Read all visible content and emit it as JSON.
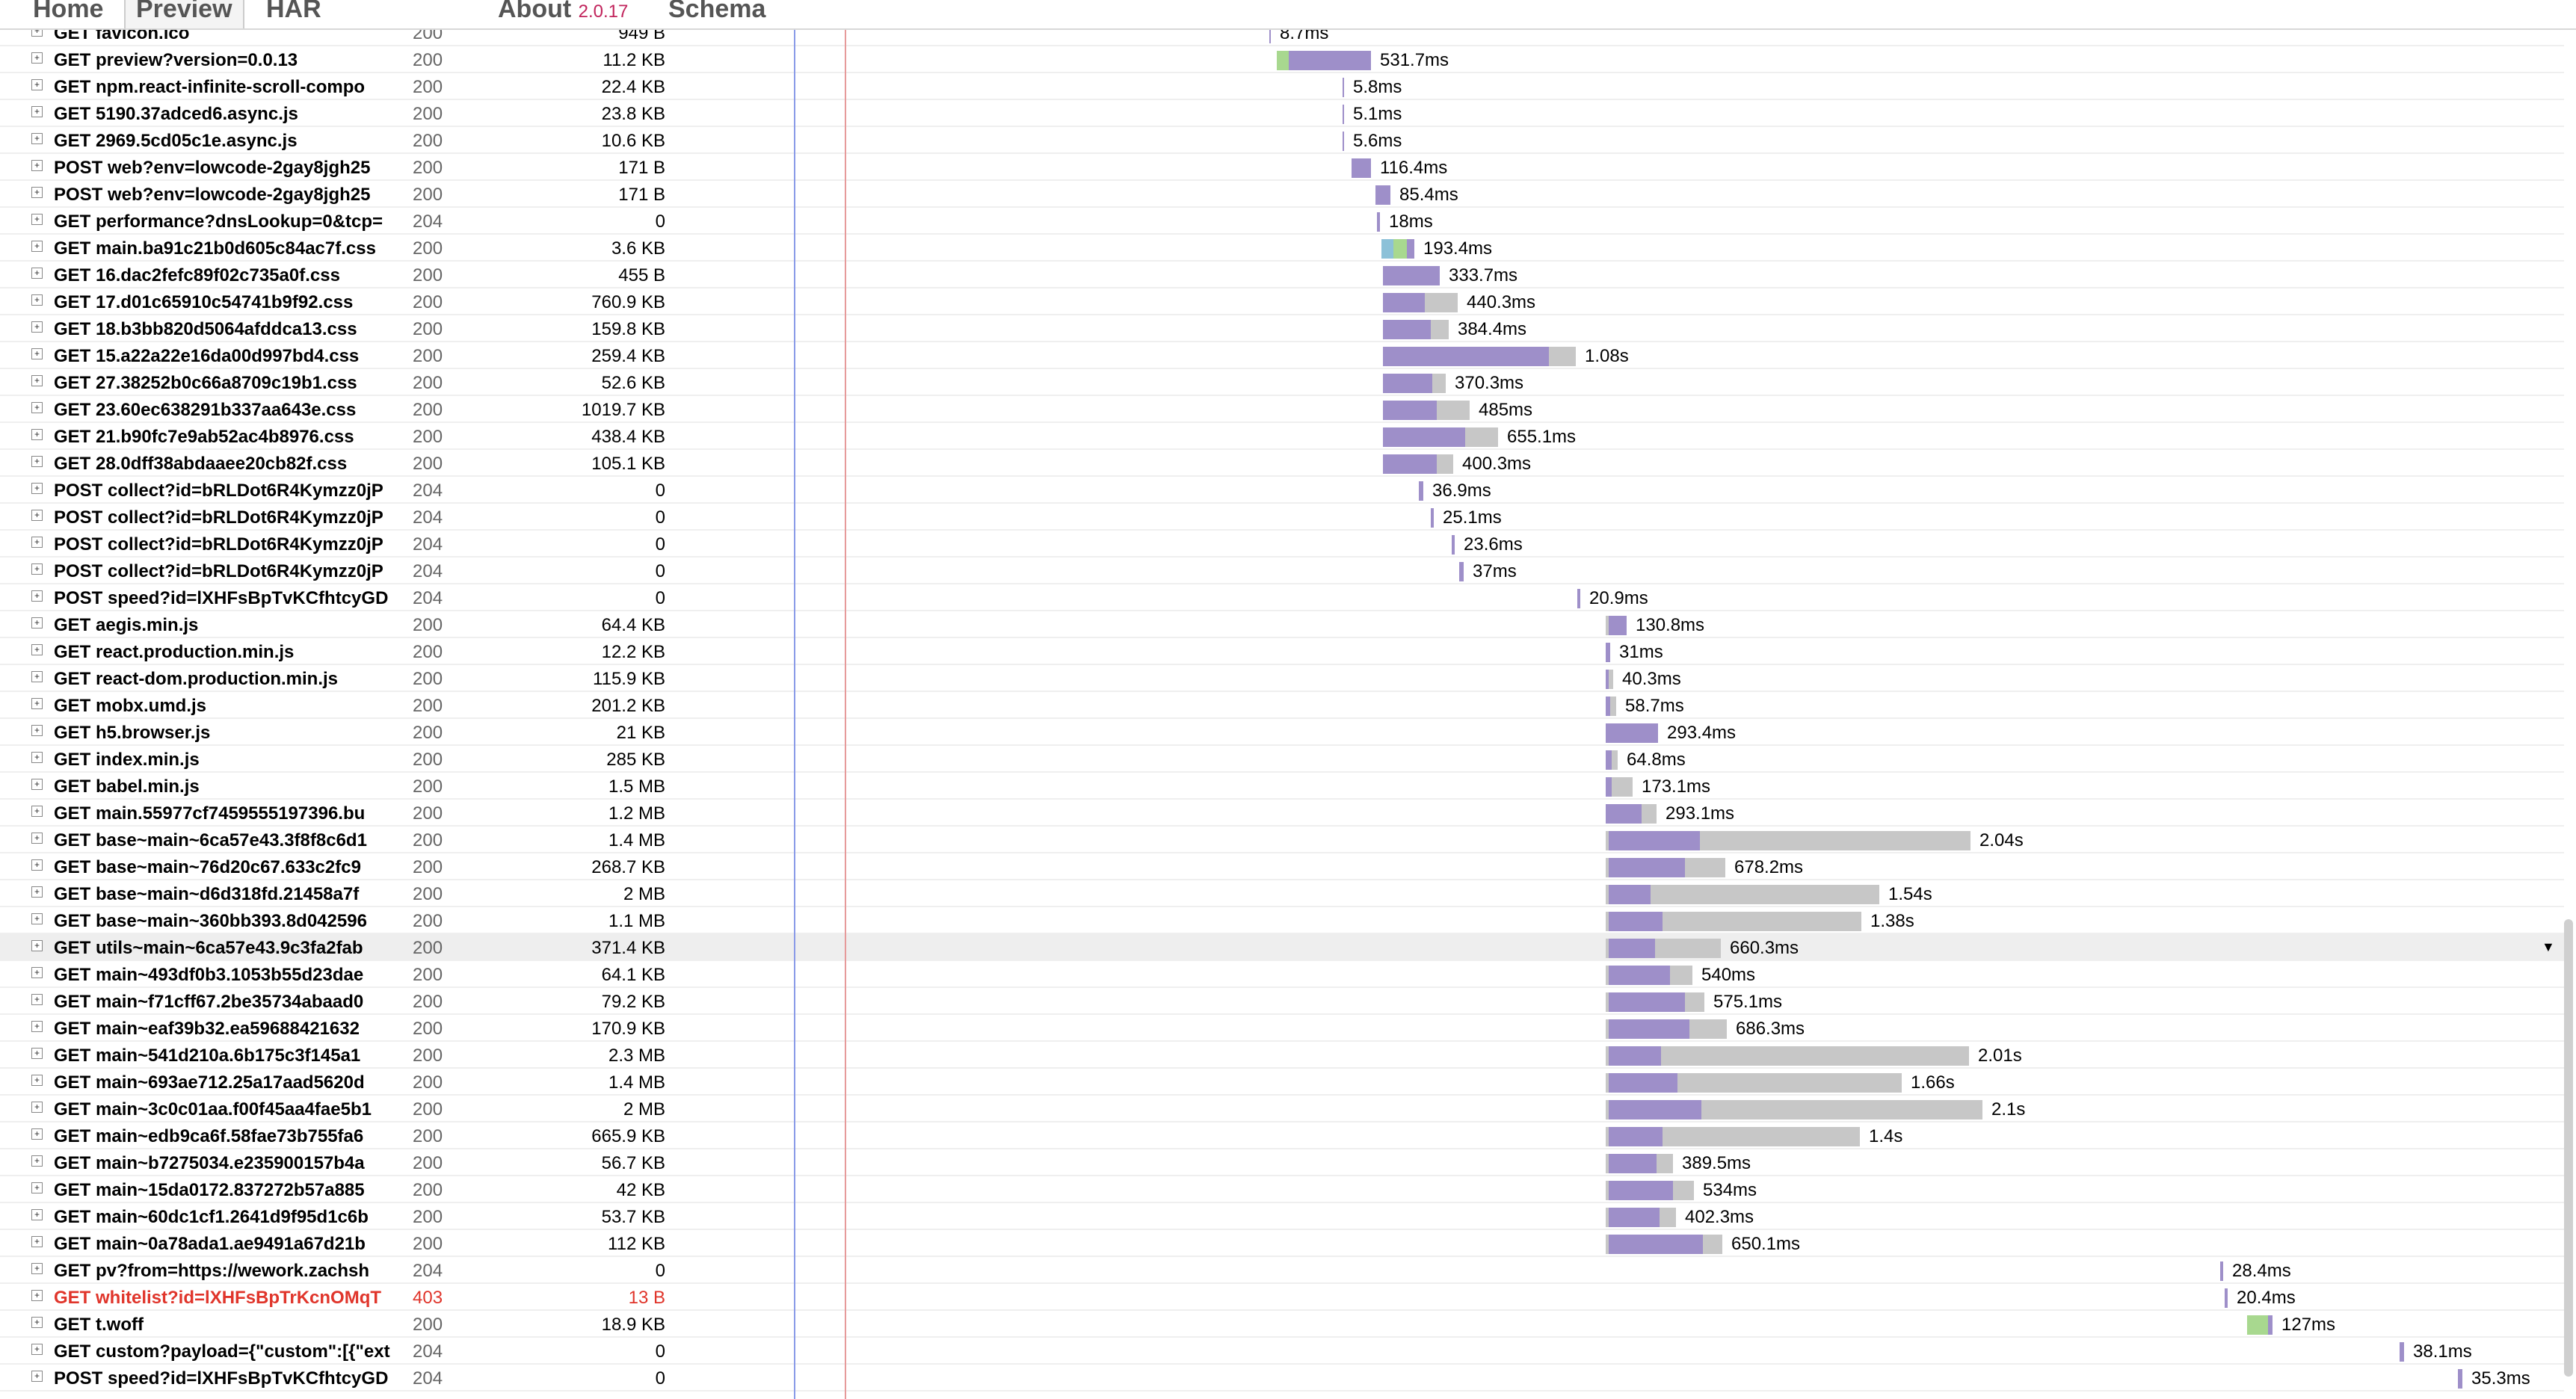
{
  "tabs": {
    "home": "Home",
    "preview": "Preview",
    "har": "HAR",
    "about": "About",
    "version": "2.0.17",
    "schema": "Schema"
  },
  "requests": [
    {
      "url": "GET favicon.ico",
      "status": "200",
      "size": "949 B",
      "time": "8.7ms",
      "start": 1698,
      "segs": [
        [
          2,
          "wait"
        ]
      ]
    },
    {
      "url": "GET preview?version=0.0.13",
      "status": "200",
      "size": "11.2 KB",
      "time": "531.7ms",
      "start": 1708,
      "segs": [
        [
          16,
          "block"
        ],
        [
          110,
          "wait"
        ]
      ]
    },
    {
      "url": "GET npm.react-infinite-scroll-compo",
      "status": "200",
      "size": "22.4 KB",
      "time": "5.8ms",
      "start": 1796,
      "segs": [
        [
          2,
          "wait"
        ]
      ]
    },
    {
      "url": "GET 5190.37adced6.async.js",
      "status": "200",
      "size": "23.8 KB",
      "time": "5.1ms",
      "start": 1796,
      "segs": [
        [
          2,
          "wait"
        ]
      ]
    },
    {
      "url": "GET 2969.5cd05c1e.async.js",
      "status": "200",
      "size": "10.6 KB",
      "time": "5.6ms",
      "start": 1796,
      "segs": [
        [
          2,
          "wait"
        ]
      ]
    },
    {
      "url": "POST web?env=lowcode-2gay8jgh25",
      "status": "200",
      "size": "171 B",
      "time": "116.4ms",
      "start": 1808,
      "segs": [
        [
          26,
          "wait"
        ]
      ]
    },
    {
      "url": "POST web?env=lowcode-2gay8jgh25",
      "status": "200",
      "size": "171 B",
      "time": "85.4ms",
      "start": 1840,
      "segs": [
        [
          20,
          "wait"
        ]
      ]
    },
    {
      "url": "GET performance?dnsLookup=0&tcp=",
      "status": "204",
      "size": "0",
      "time": "18ms",
      "start": 1842,
      "segs": [
        [
          4,
          "wait"
        ]
      ]
    },
    {
      "url": "GET main.ba91c21b0d605c84ac7f.css",
      "status": "200",
      "size": "3.6 KB",
      "time": "193.4ms",
      "start": 1848,
      "segs": [
        [
          16,
          "dns"
        ],
        [
          18,
          "block"
        ],
        [
          10,
          "wait"
        ]
      ]
    },
    {
      "url": "GET 16.dac2fefc89f02c735a0f.css",
      "status": "200",
      "size": "455 B",
      "time": "333.7ms",
      "start": 1850,
      "segs": [
        [
          76,
          "wait"
        ]
      ]
    },
    {
      "url": "GET 17.d01c65910c54741b9f92.css",
      "status": "200",
      "size": "760.9 KB",
      "time": "440.3ms",
      "start": 1850,
      "segs": [
        [
          56,
          "wait"
        ],
        [
          44,
          "recv"
        ]
      ]
    },
    {
      "url": "GET 18.b3bb820d5064afddca13.css",
      "status": "200",
      "size": "159.8 KB",
      "time": "384.4ms",
      "start": 1850,
      "segs": [
        [
          64,
          "wait"
        ],
        [
          24,
          "recv"
        ]
      ]
    },
    {
      "url": "GET 15.a22a22e16da00d997bd4.css",
      "status": "200",
      "size": "259.4 KB",
      "time": "1.08s",
      "start": 1850,
      "segs": [
        [
          222,
          "wait"
        ],
        [
          36,
          "recv"
        ]
      ]
    },
    {
      "url": "GET 27.38252b0c66a8709c19b1.css",
      "status": "200",
      "size": "52.6 KB",
      "time": "370.3ms",
      "start": 1850,
      "segs": [
        [
          66,
          "wait"
        ],
        [
          18,
          "recv"
        ]
      ]
    },
    {
      "url": "GET 23.60ec638291b337aa643e.css",
      "status": "200",
      "size": "1019.7 KB",
      "time": "485ms",
      "start": 1850,
      "segs": [
        [
          72,
          "wait"
        ],
        [
          44,
          "recv"
        ]
      ]
    },
    {
      "url": "GET 21.b90fc7e9ab52ac4b8976.css",
      "status": "200",
      "size": "438.4 KB",
      "time": "655.1ms",
      "start": 1850,
      "segs": [
        [
          110,
          "wait"
        ],
        [
          44,
          "recv"
        ]
      ]
    },
    {
      "url": "GET 28.0dff38abdaaee20cb82f.css",
      "status": "200",
      "size": "105.1 KB",
      "time": "400.3ms",
      "start": 1850,
      "segs": [
        [
          72,
          "wait"
        ],
        [
          22,
          "recv"
        ]
      ]
    },
    {
      "url": "POST collect?id=bRLDot6R4Kymzz0jP",
      "status": "204",
      "size": "0",
      "time": "36.9ms",
      "start": 1898,
      "segs": [
        [
          6,
          "wait"
        ]
      ]
    },
    {
      "url": "POST collect?id=bRLDot6R4Kymzz0jP",
      "status": "204",
      "size": "0",
      "time": "25.1ms",
      "start": 1914,
      "segs": [
        [
          4,
          "wait"
        ]
      ]
    },
    {
      "url": "POST collect?id=bRLDot6R4Kymzz0jP",
      "status": "204",
      "size": "0",
      "time": "23.6ms",
      "start": 1942,
      "segs": [
        [
          4,
          "wait"
        ]
      ]
    },
    {
      "url": "POST collect?id=bRLDot6R4Kymzz0jP",
      "status": "204",
      "size": "0",
      "time": "37ms",
      "start": 1952,
      "segs": [
        [
          6,
          "wait"
        ]
      ]
    },
    {
      "url": "POST speed?id=lXHFsBpTvKCfhtcyGD",
      "status": "204",
      "size": "0",
      "time": "20.9ms",
      "start": 2110,
      "segs": [
        [
          4,
          "wait"
        ]
      ]
    },
    {
      "url": "GET aegis.min.js",
      "status": "200",
      "size": "64.4 KB",
      "time": "130.8ms",
      "start": 2148,
      "segs": [
        [
          4,
          "recv"
        ],
        [
          24,
          "wait"
        ]
      ]
    },
    {
      "url": "GET react.production.min.js",
      "status": "200",
      "size": "12.2 KB",
      "time": "31ms",
      "start": 2148,
      "segs": [
        [
          6,
          "wait"
        ]
      ]
    },
    {
      "url": "GET react-dom.production.min.js",
      "status": "200",
      "size": "115.9 KB",
      "time": "40.3ms",
      "start": 2148,
      "segs": [
        [
          4,
          "wait"
        ],
        [
          6,
          "recv"
        ]
      ]
    },
    {
      "url": "GET mobx.umd.js",
      "status": "200",
      "size": "201.2 KB",
      "time": "58.7ms",
      "start": 2148,
      "segs": [
        [
          6,
          "wait"
        ],
        [
          8,
          "recv"
        ]
      ]
    },
    {
      "url": "GET h5.browser.js",
      "status": "200",
      "size": "21 KB",
      "time": "293.4ms",
      "start": 2148,
      "segs": [
        [
          70,
          "wait"
        ]
      ]
    },
    {
      "url": "GET index.min.js",
      "status": "200",
      "size": "285 KB",
      "time": "64.8ms",
      "start": 2148,
      "segs": [
        [
          8,
          "wait"
        ],
        [
          8,
          "recv"
        ]
      ]
    },
    {
      "url": "GET babel.min.js",
      "status": "200",
      "size": "1.5 MB",
      "time": "173.1ms",
      "start": 2148,
      "segs": [
        [
          8,
          "wait"
        ],
        [
          28,
          "recv"
        ]
      ]
    },
    {
      "url": "GET main.55977cf7459555197396.bu",
      "status": "200",
      "size": "1.2 MB",
      "time": "293.1ms",
      "start": 2148,
      "segs": [
        [
          48,
          "wait"
        ],
        [
          20,
          "recv"
        ]
      ]
    },
    {
      "url": "GET base~main~6ca57e43.3f8f8c6d1",
      "status": "200",
      "size": "1.4 MB",
      "time": "2.04s",
      "start": 2148,
      "segs": [
        [
          4,
          "recv"
        ],
        [
          122,
          "wait"
        ],
        [
          362,
          "recv"
        ]
      ]
    },
    {
      "url": "GET base~main~76d20c67.633c2fc9",
      "status": "200",
      "size": "268.7 KB",
      "time": "678.2ms",
      "start": 2148,
      "segs": [
        [
          4,
          "recv"
        ],
        [
          102,
          "wait"
        ],
        [
          54,
          "recv"
        ]
      ]
    },
    {
      "url": "GET base~main~d6d318fd.21458a7f",
      "status": "200",
      "size": "2 MB",
      "time": "1.54s",
      "start": 2148,
      "segs": [
        [
          4,
          "recv"
        ],
        [
          56,
          "wait"
        ],
        [
          306,
          "recv"
        ]
      ]
    },
    {
      "url": "GET base~main~360bb393.8d042596",
      "status": "200",
      "size": "1.1 MB",
      "time": "1.38s",
      "start": 2148,
      "segs": [
        [
          4,
          "recv"
        ],
        [
          72,
          "wait"
        ],
        [
          266,
          "recv"
        ]
      ]
    },
    {
      "url": "GET utils~main~6ca57e43.9c3fa2fab",
      "status": "200",
      "size": "371.4 KB",
      "time": "660.3ms",
      "start": 2148,
      "segs": [
        [
          4,
          "recv"
        ],
        [
          62,
          "wait"
        ],
        [
          88,
          "recv"
        ]
      ],
      "selected": true
    },
    {
      "url": "GET main~493df0b3.1053b55d23dae",
      "status": "200",
      "size": "64.1 KB",
      "time": "540ms",
      "start": 2148,
      "segs": [
        [
          4,
          "recv"
        ],
        [
          82,
          "wait"
        ],
        [
          30,
          "recv"
        ]
      ]
    },
    {
      "url": "GET main~f71cff67.2be35734abaad0",
      "status": "200",
      "size": "79.2 KB",
      "time": "575.1ms",
      "start": 2148,
      "segs": [
        [
          4,
          "recv"
        ],
        [
          102,
          "wait"
        ],
        [
          26,
          "recv"
        ]
      ]
    },
    {
      "url": "GET main~eaf39b32.ea59688421632",
      "status": "200",
      "size": "170.9 KB",
      "time": "686.3ms",
      "start": 2148,
      "segs": [
        [
          4,
          "recv"
        ],
        [
          108,
          "wait"
        ],
        [
          50,
          "recv"
        ]
      ]
    },
    {
      "url": "GET main~541d210a.6b175c3f145a1",
      "status": "200",
      "size": "2.3 MB",
      "time": "2.01s",
      "start": 2148,
      "segs": [
        [
          4,
          "recv"
        ],
        [
          70,
          "wait"
        ],
        [
          412,
          "recv"
        ]
      ]
    },
    {
      "url": "GET main~693ae712.25a17aad5620d",
      "status": "200",
      "size": "1.4 MB",
      "time": "1.66s",
      "start": 2148,
      "segs": [
        [
          4,
          "recv"
        ],
        [
          92,
          "wait"
        ],
        [
          300,
          "recv"
        ]
      ]
    },
    {
      "url": "GET main~3c0c01aa.f00f45aa4fae5b1",
      "status": "200",
      "size": "2 MB",
      "time": "2.1s",
      "start": 2148,
      "segs": [
        [
          4,
          "recv"
        ],
        [
          124,
          "wait"
        ],
        [
          376,
          "recv"
        ]
      ]
    },
    {
      "url": "GET main~edb9ca6f.58fae73b755fa6",
      "status": "200",
      "size": "665.9 KB",
      "time": "1.4s",
      "start": 2148,
      "segs": [
        [
          4,
          "recv"
        ],
        [
          72,
          "wait"
        ],
        [
          264,
          "recv"
        ]
      ]
    },
    {
      "url": "GET main~b7275034.e235900157b4a",
      "status": "200",
      "size": "56.7 KB",
      "time": "389.5ms",
      "start": 2148,
      "segs": [
        [
          4,
          "recv"
        ],
        [
          64,
          "wait"
        ],
        [
          22,
          "recv"
        ]
      ]
    },
    {
      "url": "GET main~15da0172.837272b57a885",
      "status": "200",
      "size": "42 KB",
      "time": "534ms",
      "start": 2148,
      "segs": [
        [
          4,
          "recv"
        ],
        [
          86,
          "wait"
        ],
        [
          28,
          "recv"
        ]
      ]
    },
    {
      "url": "GET main~60dc1cf1.2641d9f95d1c6b",
      "status": "200",
      "size": "53.7 KB",
      "time": "402.3ms",
      "start": 2148,
      "segs": [
        [
          4,
          "recv"
        ],
        [
          68,
          "wait"
        ],
        [
          22,
          "recv"
        ]
      ]
    },
    {
      "url": "GET main~0a78ada1.ae9491a67d21b",
      "status": "200",
      "size": "112 KB",
      "time": "650.1ms",
      "start": 2148,
      "segs": [
        [
          4,
          "recv"
        ],
        [
          126,
          "wait"
        ],
        [
          26,
          "recv"
        ]
      ]
    },
    {
      "url": "GET pv?from=https://wework.zachsh",
      "status": "204",
      "size": "0",
      "time": "28.4ms",
      "start": 2970,
      "segs": [
        [
          4,
          "wait"
        ]
      ]
    },
    {
      "url": "GET whitelist?id=lXHFsBpTrKcnOMqT",
      "status": "403",
      "size": "13 B",
      "time": "20.4ms",
      "start": 2976,
      "segs": [
        [
          4,
          "wait"
        ]
      ],
      "error": true
    },
    {
      "url": "GET t.woff",
      "status": "200",
      "size": "18.9 KB",
      "time": "127ms",
      "start": 3006,
      "segs": [
        [
          28,
          "block"
        ],
        [
          6,
          "wait"
        ]
      ]
    },
    {
      "url": "GET custom?payload={\"custom\":[{\"ext",
      "status": "204",
      "size": "0",
      "time": "38.1ms",
      "start": 3210,
      "segs": [
        [
          6,
          "wait"
        ]
      ]
    },
    {
      "url": "POST speed?id=lXHFsBpTvKCfhtcyGD",
      "status": "204",
      "size": "0",
      "time": "35.3ms",
      "start": 3288,
      "segs": [
        [
          6,
          "wait"
        ]
      ]
    }
  ]
}
